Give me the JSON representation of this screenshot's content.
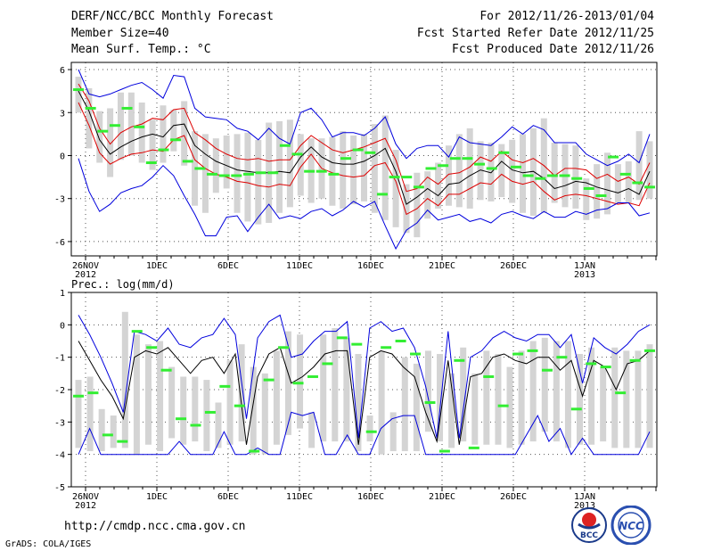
{
  "header": {
    "left1": "DERF/NCC/BCC Monthly Forecast",
    "left2": "Member Size=40",
    "left3": "Mean Surf. Temp.: °C",
    "right1": "For 2012/11/26-2013/01/04",
    "right2": "Fcst Started Refer Date 2012/11/25",
    "right3": "Fcst Produced Date 2012/11/26"
  },
  "footer": {
    "url": "http://cmdp.ncc.cma.gov.cn",
    "grads": "GrADS: COLA/IGES",
    "logo1": "BCC",
    "logo2": "NCC"
  },
  "colors": {
    "box": "#d4d4d4",
    "obs": "#33ee33",
    "envelope": "#0000dd",
    "spread": "#dd0000",
    "mean": "#000000",
    "grid": "#555555"
  },
  "chart_data": [
    {
      "type": "line",
      "title": "Mean Surf. Temp.: °C",
      "x_tick_labels": [
        "26NOV",
        "1DEC",
        "6DEC",
        "11DEC",
        "16DEC",
        "21DEC",
        "26DEC",
        "1JAN"
      ],
      "x_tick_sub_labels": [
        {
          "index": 0,
          "label": "2012"
        },
        {
          "index": 7,
          "label": "2013"
        }
      ],
      "ylim": [
        -7,
        6.5
      ],
      "yticks": [
        -6,
        -3,
        0,
        3,
        6
      ],
      "days": 40,
      "series": [
        {
          "name": "ensemble max",
          "values": [
            6,
            4.3,
            4.1,
            4.3,
            4.6,
            4.9,
            5.1,
            4.6,
            4,
            5.6,
            5.5,
            3.3,
            2.7,
            2.6,
            2.5,
            1.9,
            1.7,
            1.1,
            1.9,
            1.2,
            0.8,
            3,
            3.3,
            2.5,
            1.3,
            1.6,
            1.6,
            1.4,
            1.9,
            2.7,
            0.8,
            -0.2,
            0.5,
            0.7,
            0.7,
            -0.1,
            1.3,
            0.9,
            0.8,
            0.7,
            1.3,
            2,
            1.5,
            2.1,
            1.8,
            0.9,
            0.9,
            0.9,
            0.1,
            -0.3,
            -0.7,
            -0.4,
            0.1,
            -0.5,
            1.5
          ]
        },
        {
          "name": "spread upper",
          "values": [
            5,
            3.8,
            1.9,
            0.8,
            1.6,
            2,
            2.2,
            2.6,
            2.5,
            3.2,
            3.3,
            1.6,
            1.1,
            0.5,
            0.1,
            -0.2,
            -0.3,
            -0.2,
            -0.4,
            -0.3,
            -0.3,
            0.7,
            1.4,
            0.9,
            0.4,
            0.2,
            0.4,
            0.6,
            0.9,
            1.2,
            -0.3,
            -2.5,
            -2.3,
            -1.5,
            -2,
            -1.3,
            -1.2,
            -0.8,
            -0.1,
            -0.4,
            0.3,
            -0.3,
            -0.5,
            -0.2,
            -0.7,
            -1.4,
            -0.9,
            -0.9,
            -1,
            -1.6,
            -1.3,
            -1.8,
            -1.5,
            -2,
            -0.5
          ]
        },
        {
          "name": "ensemble mean",
          "values": [
            4.5,
            3.1,
            1.1,
            0.1,
            0.6,
            1,
            1.3,
            1.5,
            1.3,
            2.1,
            2.2,
            0.7,
            0.1,
            -0.4,
            -0.7,
            -1,
            -1.1,
            -1.2,
            -1.2,
            -1.1,
            -1.2,
            -0.1,
            0.6,
            -0.1,
            -0.5,
            -0.6,
            -0.6,
            -0.4,
            0,
            0.5,
            -1.1,
            -3.4,
            -2.9,
            -2.3,
            -2.8,
            -2,
            -1.9,
            -1.4,
            -1,
            -1.2,
            -0.4,
            -1,
            -1.2,
            -1.1,
            -1.6,
            -2.3,
            -2.1,
            -1.8,
            -1.9,
            -2.2,
            -2.4,
            -2.6,
            -2.3,
            -2.7,
            -1.1
          ]
        },
        {
          "name": "spread lower",
          "values": [
            3.7,
            2.1,
            0.2,
            -0.6,
            -0.2,
            0.1,
            0.2,
            0.4,
            0.3,
            1.1,
            1.4,
            -0.3,
            -0.9,
            -1.3,
            -1.5,
            -1.8,
            -1.9,
            -2.1,
            -2.2,
            -2,
            -2.1,
            -0.8,
            0.1,
            -0.9,
            -1.2,
            -1.4,
            -1.5,
            -1.4,
            -0.7,
            -0.5,
            -1.8,
            -4.1,
            -3.7,
            -3,
            -3.5,
            -2.7,
            -2.7,
            -2.3,
            -1.9,
            -2,
            -1.3,
            -1.8,
            -2,
            -1.8,
            -2.5,
            -3.1,
            -2.8,
            -2.7,
            -2.8,
            -3,
            -3.2,
            -3.4,
            -3.3,
            -3.5,
            -1.9
          ]
        },
        {
          "name": "ensemble min",
          "values": [
            -0.2,
            -2.5,
            -3.9,
            -3.4,
            -2.6,
            -2.3,
            -2.1,
            -1.5,
            -0.7,
            -1.4,
            -2.8,
            -4.1,
            -5.6,
            -5.6,
            -4.3,
            -4.2,
            -5.3,
            -4.3,
            -3.4,
            -4.4,
            -4.2,
            -4.4,
            -3.9,
            -3.7,
            -4.2,
            -3.8,
            -3.2,
            -3.6,
            -3.2,
            -4.9,
            -6.5,
            -5.2,
            -4.7,
            -3.8,
            -4.5,
            -4.3,
            -4.1,
            -4.6,
            -4.4,
            -4.7,
            -4.1,
            -3.9,
            -4.2,
            -4.4,
            -3.9,
            -4.3,
            -4.3,
            -3.9,
            -4.1,
            -3.8,
            -3.7,
            -3.3,
            -3.3,
            -4.2,
            -4
          ]
        },
        {
          "name": "observed",
          "values": [
            4.6,
            3.3,
            1.7,
            2.1,
            3.3,
            2,
            -0.5,
            0.4,
            1.1,
            -0.4,
            -0.9,
            -1.3,
            -1.4,
            -1.4,
            -1.3,
            -1.2,
            -1.2,
            0.7,
            0.1,
            -1.1,
            -1.1,
            -1.3,
            -0.2,
            0.4,
            0.2,
            -2.7,
            -1.5,
            -1.5,
            -2.2,
            -0.9,
            -0.7,
            -0.2,
            -0.2,
            -0.6,
            -0.9,
            0.2,
            -0.8,
            -1.4,
            -1.6,
            -1.4,
            -1.4,
            -1.6,
            -2.3,
            -2.8,
            -0.1,
            -1.3,
            -1.9,
            -2.2
          ]
        }
      ],
      "box_low": [
        3,
        0.5,
        -0.5,
        -1.5,
        -0.3,
        0,
        -0.5,
        -1,
        -0.5,
        0.3,
        -0.7,
        -3.5,
        -4,
        -2.6,
        -2.3,
        -4,
        -4.6,
        -4.8,
        -4.7,
        -4,
        -3.6,
        -2.8,
        -3.3,
        -3,
        -3.5,
        -3.7,
        -3.4,
        -3.2,
        -4,
        -4.5,
        -5,
        -5.4,
        -5.7,
        -4.4,
        -3.7,
        -3.5,
        -3.6,
        -3.7,
        -3.1,
        -3.2,
        -2.9,
        -3.3,
        -4,
        -4.2,
        -4,
        -3.3,
        -3.6,
        -3.7,
        -4.5,
        -4.4,
        -4.1,
        -3.3,
        -3.3,
        -3.1,
        -3
      ],
      "box_high": [
        5.5,
        4.7,
        3.1,
        3.3,
        4.4,
        4.4,
        3.7,
        2.5,
        3.5,
        3.2,
        3.8,
        1.7,
        1.5,
        1.2,
        1.4,
        1.5,
        1.6,
        1.1,
        2.3,
        2.4,
        2.5,
        1.5,
        1.2,
        1.2,
        1.3,
        1.7,
        1.4,
        1.5,
        2.2,
        2.8,
        0.4,
        -2,
        -1.2,
        -1.1,
        -0.5,
        0.7,
        1.5,
        1.9,
        1,
        0.9,
        0.8,
        1.1,
        1.5,
        1.9,
        2.6,
        0.9,
        0.8,
        0.7,
        -1.6,
        -0.6,
        0.2,
        -0.6,
        -0.4,
        1.7,
        1
      ]
    },
    {
      "type": "line",
      "title": "Prec.: log(mm/d)",
      "x_tick_labels": [
        "26NOV",
        "1DEC",
        "6DEC",
        "11DEC",
        "16DEC",
        "21DEC",
        "26DEC",
        "1JAN"
      ],
      "x_tick_sub_labels": [
        {
          "index": 0,
          "label": "2012"
        },
        {
          "index": 7,
          "label": "2013"
        }
      ],
      "ylim": [
        -5,
        1
      ],
      "yticks": [
        -5,
        -4,
        -3,
        -2,
        -1,
        0,
        1
      ],
      "days": 40,
      "series": [
        {
          "name": "ensemble max",
          "values": [
            0.3,
            -0.3,
            -1,
            -1.8,
            -2.7,
            -0.2,
            -0.3,
            -0.5,
            -0.1,
            -0.6,
            -0.7,
            -0.4,
            -0.3,
            0.2,
            -0.3,
            -2.9,
            -0.4,
            0.1,
            0.3,
            -1,
            -0.9,
            -0.5,
            -0.2,
            -0.2,
            0.1,
            -3.5,
            -0.1,
            0.1,
            -0.2,
            -0.1,
            -0.7,
            -1.9,
            -3.5,
            -0.2,
            -3.5,
            -1,
            -0.8,
            -0.4,
            -0.2,
            -0.4,
            -0.5,
            -0.3,
            -0.3,
            -0.7,
            -0.3,
            -1.8,
            -0.4,
            -0.7,
            -0.9,
            -0.6,
            -0.2,
            0
          ]
        },
        {
          "name": "ensemble mean",
          "values": [
            -0.5,
            -1.1,
            -1.7,
            -2.2,
            -2.9,
            -1,
            -0.8,
            -0.9,
            -0.7,
            -1.1,
            -1.5,
            -1.1,
            -1,
            -1.5,
            -0.9,
            -3.7,
            -1.6,
            -0.9,
            -0.7,
            -1.8,
            -1.6,
            -1.3,
            -0.9,
            -0.8,
            -0.8,
            -3.7,
            -1,
            -0.8,
            -0.9,
            -1.3,
            -1.6,
            -2.7,
            -3.6,
            -1.1,
            -3.7,
            -1.6,
            -1.5,
            -1,
            -0.9,
            -1.1,
            -1.2,
            -1,
            -1,
            -1.4,
            -1.1,
            -2.2,
            -1.1,
            -1.3,
            -2,
            -1.2,
            -1.1,
            -0.8
          ]
        },
        {
          "name": "ensemble min",
          "values": [
            -4,
            -3.2,
            -4,
            -4,
            -4,
            -4,
            -4,
            -4,
            -4,
            -3.6,
            -4,
            -4,
            -4,
            -3.3,
            -4,
            -4,
            -3.8,
            -4,
            -4,
            -2.7,
            -2.8,
            -2.7,
            -4,
            -4,
            -3.4,
            -4,
            -4,
            -3.2,
            -2.9,
            -2.8,
            -2.8,
            -4,
            -4,
            -4,
            -4,
            -4,
            -4,
            -4,
            -4,
            -4,
            -3.4,
            -2.8,
            -3.6,
            -3.2,
            -4,
            -3.5,
            -4,
            -4,
            -4,
            -4,
            -4,
            -3.3
          ]
        },
        {
          "name": "observed",
          "values": [
            -2.2,
            -2.1,
            -3.4,
            -3.6,
            -0.2,
            -0.7,
            -1.4,
            -2.9,
            -3.1,
            -2.7,
            -1.9,
            -2.5,
            -3.9,
            -1.7,
            -0.7,
            -1.8,
            -1.6,
            -1.2,
            -0.4,
            -0.6,
            -3.3,
            -0.7,
            -0.5,
            -0.9,
            -2.4,
            -3.9,
            -1.1,
            -3.8,
            -1.6,
            -2.5,
            -0.9,
            -0.8,
            -1.4,
            -1,
            -2.6,
            -1.2,
            -1.3,
            -2.1,
            -1.1,
            -0.8
          ]
        }
      ],
      "box_low": [
        -3.8,
        -3.9,
        -3.9,
        -3.8,
        -3.8,
        -4,
        -3.7,
        -3.9,
        -3.5,
        -3.7,
        -3.6,
        -3.9,
        -3.8,
        -3.7,
        -3.6,
        -4,
        -4,
        -3.7,
        -3.4,
        -3.2,
        -3.8,
        -3.6,
        -3.6,
        -3.6,
        -3.9,
        -3.6,
        -4,
        -3.9,
        -3.9,
        -3.9,
        -3.3,
        -3.6,
        -3.8,
        -3.6,
        -3.7,
        -3.7,
        -3.7,
        -3.8,
        -3.7,
        -3.6,
        -3.3,
        -3.6,
        -3.8,
        -3.7,
        -3.7,
        -3.6,
        -3.8,
        -3.8,
        -3.8,
        -3.8
      ],
      "box_high": [
        -1.7,
        -1.6,
        -2.6,
        -2.8,
        0.4,
        -0.3,
        -0.6,
        -0.5,
        -1.3,
        -1.6,
        -1.6,
        -1.7,
        -2.4,
        -1.1,
        -0.6,
        -1.3,
        -1.5,
        -0.8,
        -0.2,
        -0.3,
        -2.7,
        -0.3,
        -0.1,
        -0.4,
        -0.9,
        -2.8,
        -0.8,
        -2.7,
        -1,
        -1.2,
        -0.8,
        -0.9,
        -1.5,
        -0.7,
        -1.5,
        -0.8,
        -0.9,
        -1.3,
        -0.8,
        -0.5,
        -0.4,
        -0.5,
        -0.5,
        -0.9,
        -0.7,
        -1.3,
        -0.7,
        -0.8,
        -0.8,
        -0.6
      ]
    }
  ]
}
